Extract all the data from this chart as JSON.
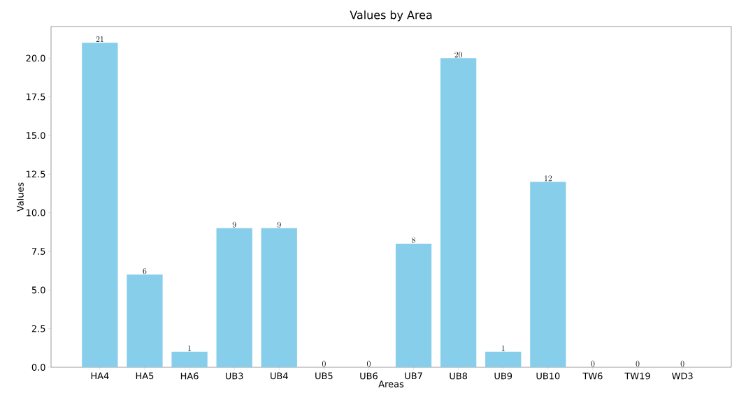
{
  "chart_data": {
    "type": "bar",
    "title": "Values by Area",
    "xlabel": "Areas",
    "ylabel": "Values",
    "categories": [
      "HA4",
      "HA5",
      "HA6",
      "UB3",
      "UB4",
      "UB5",
      "UB6",
      "UB7",
      "UB8",
      "UB9",
      "UB10",
      "TW6",
      "TW19",
      "WD3"
    ],
    "values": [
      21,
      6,
      1,
      9,
      9,
      0,
      0,
      8,
      20,
      1,
      12,
      0,
      0,
      0
    ],
    "color": "#87ceeb",
    "ylim": [
      0,
      22.05
    ],
    "yticks": [
      {
        "value": 0,
        "label": "0.0"
      },
      {
        "value": 2.5,
        "label": "2.5"
      },
      {
        "value": 5,
        "label": "5.0"
      },
      {
        "value": 7.5,
        "label": "7.5"
      },
      {
        "value": 10,
        "label": "10.0"
      },
      {
        "value": 12.5,
        "label": "12.5"
      },
      {
        "value": 15,
        "label": "15.0"
      },
      {
        "value": 17.5,
        "label": "17.5"
      },
      {
        "value": 20,
        "label": "20.0"
      }
    ],
    "data_labels": true
  }
}
